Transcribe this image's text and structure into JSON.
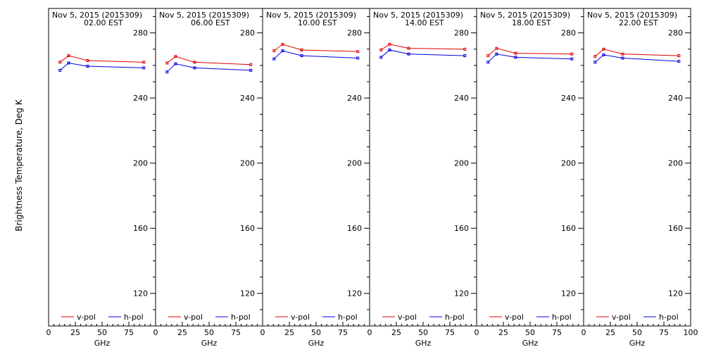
{
  "chart_data": {
    "type": "line",
    "ylabel": "Brightness Temperature, Deg K",
    "xlabel": "GHz",
    "xlim": [
      0,
      100
    ],
    "ylim": [
      100,
      295
    ],
    "yticks": [
      120,
      160,
      200,
      240,
      280
    ],
    "xticks": [
      0,
      25,
      50,
      75,
      100
    ],
    "grid": false,
    "legend": "bottom",
    "colors": {
      "v-pol": "#e00000",
      "h-pol": "#0000e0"
    },
    "x": [
      10.7,
      18.7,
      36.5,
      89.0
    ],
    "panels": [
      {
        "date": "Nov  5, 2015 (2015309)",
        "time": "02.00 EST",
        "series": [
          {
            "name": "v-pol",
            "values": [
              262,
              266,
              263,
              262
            ]
          },
          {
            "name": "h-pol",
            "values": [
              257,
              261.5,
              259.5,
              258.5
            ]
          }
        ]
      },
      {
        "date": "Nov  5, 2015 (2015309)",
        "time": "06.00 EST",
        "series": [
          {
            "name": "v-pol",
            "values": [
              261.5,
              265.5,
              262,
              260.5
            ]
          },
          {
            "name": "h-pol",
            "values": [
              256,
              261,
              258.5,
              257
            ]
          }
        ]
      },
      {
        "date": "Nov  5, 2015 (2015309)",
        "time": "10.00 EST",
        "series": [
          {
            "name": "v-pol",
            "values": [
              269,
              273,
              269.5,
              268.5
            ]
          },
          {
            "name": "h-pol",
            "values": [
              264,
              269,
              266,
              264.5
            ]
          }
        ]
      },
      {
        "date": "Nov  5, 2015 (2015309)",
        "time": "14.00 EST",
        "series": [
          {
            "name": "v-pol",
            "values": [
              269.5,
              273,
              270.5,
              270
            ]
          },
          {
            "name": "h-pol",
            "values": [
              265,
              269.5,
              267,
              266
            ]
          }
        ]
      },
      {
        "date": "Nov  5, 2015 (2015309)",
        "time": "18.00 EST",
        "series": [
          {
            "name": "v-pol",
            "values": [
              266,
              270.5,
              267.5,
              267
            ]
          },
          {
            "name": "h-pol",
            "values": [
              262,
              267,
              265,
              264
            ]
          }
        ]
      },
      {
        "date": "Nov  5, 2015 (2015309)",
        "time": "22.00 EST",
        "series": [
          {
            "name": "v-pol",
            "values": [
              265.5,
              270,
              267,
              266
            ]
          },
          {
            "name": "h-pol",
            "values": [
              262,
              266.5,
              264.5,
              262.5
            ]
          }
        ]
      }
    ]
  }
}
